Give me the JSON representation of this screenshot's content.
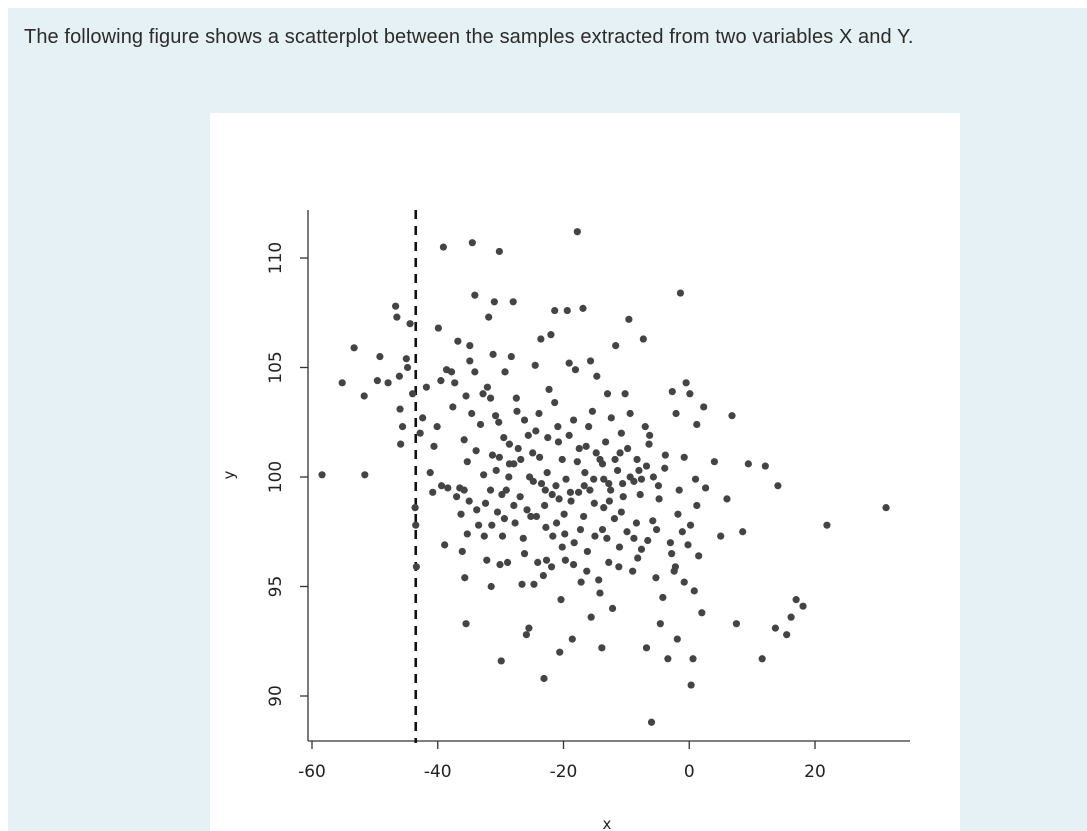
{
  "question": {
    "text": "The following figure shows a scatterplot between the samples extracted from two variables X and Y."
  },
  "colors": {
    "panel_background": "#e5f1f4",
    "point": "#444444",
    "reference_line": "#111111"
  },
  "chart_data": {
    "type": "scatter",
    "xlabel": "x",
    "ylabel": "y",
    "xlim": [
      -60,
      35
    ],
    "ylim": [
      88.0,
      112.0
    ],
    "x_ticks": [
      -60,
      -40,
      -20,
      0,
      20
    ],
    "y_ticks": [
      90,
      95,
      100,
      105,
      110
    ],
    "x_tick_labels": [
      "-60",
      "-40",
      "-20",
      "0",
      "20"
    ],
    "y_tick_labels": [
      "90",
      "95",
      "100",
      "105",
      "110"
    ],
    "reference_line": {
      "axis": "x",
      "value": -43.5,
      "style": "dashed"
    },
    "grid": false,
    "legend": "none",
    "series": [
      {
        "points": [
          [
            -58.4,
            100.1
          ],
          [
            -51.6,
            100.1
          ],
          [
            -55.2,
            104.3
          ],
          [
            -53.3,
            105.9
          ],
          [
            -51.7,
            103.7
          ],
          [
            -49.6,
            104.4
          ],
          [
            -49.2,
            105.5
          ],
          [
            -47.9,
            104.3
          ],
          [
            -46.7,
            107.8
          ],
          [
            -46.5,
            107.3
          ],
          [
            -46.1,
            104.6
          ],
          [
            -46.0,
            103.1
          ],
          [
            -45.6,
            102.3
          ],
          [
            -45.9,
            101.5
          ],
          [
            -45.0,
            105.4
          ],
          [
            -44.8,
            105.0
          ],
          [
            -44.4,
            107.0
          ],
          [
            -44.0,
            103.8
          ],
          [
            -43.6,
            98.6
          ],
          [
            -43.5,
            97.8
          ],
          [
            -43.4,
            95.9
          ],
          [
            -42.4,
            102.7
          ],
          [
            -41.8,
            104.1
          ],
          [
            -41.2,
            100.2
          ],
          [
            -40.8,
            99.3
          ],
          [
            -40.1,
            102.3
          ],
          [
            -39.9,
            106.8
          ],
          [
            -39.5,
            104.4
          ],
          [
            -39.4,
            99.6
          ],
          [
            -39.1,
            110.5
          ],
          [
            -38.9,
            96.9
          ],
          [
            -38.6,
            104.9
          ],
          [
            -38.4,
            99.5
          ],
          [
            -37.8,
            104.8
          ],
          [
            -37.6,
            103.2
          ],
          [
            -37.3,
            104.3
          ],
          [
            -36.8,
            106.2
          ],
          [
            -36.5,
            99.5
          ],
          [
            -36.3,
            98.3
          ],
          [
            -35.8,
            101.7
          ],
          [
            -36.1,
            96.6
          ],
          [
            -35.8,
            99.4
          ],
          [
            -35.7,
            95.4
          ],
          [
            -35.5,
            93.3
          ],
          [
            -35.5,
            103.7
          ],
          [
            -35.3,
            100.7
          ],
          [
            -35.3,
            97.4
          ],
          [
            -34.9,
            105.3
          ],
          [
            -34.9,
            106.0
          ],
          [
            -34.5,
            110.7
          ],
          [
            -34.1,
            108.3
          ],
          [
            -34.1,
            104.8
          ],
          [
            -33.8,
            98.5
          ],
          [
            -33.5,
            97.8
          ],
          [
            -33.2,
            102.4
          ],
          [
            -32.8,
            103.8
          ],
          [
            -32.4,
            98.8
          ],
          [
            -32.2,
            96.2
          ],
          [
            -32.1,
            104.1
          ],
          [
            -31.9,
            107.3
          ],
          [
            -31.6,
            99.4
          ],
          [
            -31.5,
            95.0
          ],
          [
            -31.4,
            97.8
          ],
          [
            -31.3,
            101.0
          ],
          [
            -31.2,
            105.6
          ],
          [
            -31.0,
            108.0
          ],
          [
            -30.7,
            100.3
          ],
          [
            -30.5,
            98.4
          ],
          [
            -30.3,
            102.5
          ],
          [
            -30.2,
            110.3
          ],
          [
            -30.1,
            96.0
          ],
          [
            -29.9,
            91.6
          ],
          [
            -29.7,
            97.3
          ],
          [
            -29.5,
            101.8
          ],
          [
            -29.3,
            104.8
          ],
          [
            -29.1,
            99.4
          ],
          [
            -28.9,
            96.1
          ],
          [
            -28.7,
            100.0
          ],
          [
            -28.3,
            105.5
          ],
          [
            -28.0,
            108.0
          ],
          [
            -27.9,
            98.7
          ],
          [
            -27.5,
            103.6
          ],
          [
            -27.2,
            101.3
          ],
          [
            -26.9,
            99.1
          ],
          [
            -26.6,
            95.1
          ],
          [
            -26.4,
            97.2
          ],
          [
            -26.2,
            102.6
          ],
          [
            -25.9,
            92.8
          ],
          [
            -25.5,
            93.1
          ],
          [
            -25.4,
            100.0
          ],
          [
            -25.2,
            98.2
          ],
          [
            -24.9,
            101.1
          ],
          [
            -24.7,
            95.1
          ],
          [
            -24.5,
            105.1
          ],
          [
            -24.1,
            96.1
          ],
          [
            -23.9,
            102.9
          ],
          [
            -23.6,
            106.3
          ],
          [
            -23.5,
            99.7
          ],
          [
            -23.1,
            90.8
          ],
          [
            -23.0,
            98.7
          ],
          [
            -22.7,
            96.2
          ],
          [
            -22.5,
            101.8
          ],
          [
            -22.3,
            104.0
          ],
          [
            -22.0,
            106.5
          ],
          [
            -21.9,
            95.9
          ],
          [
            -21.7,
            97.3
          ],
          [
            -21.4,
            107.6
          ],
          [
            -21.2,
            99.6
          ],
          [
            -20.9,
            102.3
          ],
          [
            -20.6,
            92.0
          ],
          [
            -20.4,
            94.4
          ],
          [
            -20.2,
            100.8
          ],
          [
            -19.9,
            98.3
          ],
          [
            -19.7,
            96.2
          ],
          [
            -19.4,
            107.6
          ],
          [
            -19.1,
            105.2
          ],
          [
            -18.9,
            99.3
          ],
          [
            -18.6,
            92.6
          ],
          [
            -18.4,
            96.0
          ],
          [
            -18.1,
            104.9
          ],
          [
            -17.8,
            111.2
          ],
          [
            -17.5,
            101.3
          ],
          [
            -17.3,
            97.6
          ],
          [
            -16.9,
            107.7
          ],
          [
            -16.7,
            99.6
          ],
          [
            -16.3,
            95.7
          ],
          [
            -16.0,
            102.3
          ],
          [
            -15.7,
            105.3
          ],
          [
            -15.6,
            93.6
          ],
          [
            -15.2,
            99.9
          ],
          [
            -15.0,
            97.3
          ],
          [
            -14.7,
            104.6
          ],
          [
            -14.4,
            95.3
          ],
          [
            -14.2,
            100.8
          ],
          [
            -13.9,
            92.2
          ],
          [
            -13.6,
            98.6
          ],
          [
            -13.3,
            101.6
          ],
          [
            -13.0,
            103.8
          ],
          [
            -12.8,
            96.1
          ],
          [
            -12.5,
            99.4
          ],
          [
            -12.2,
            94.0
          ],
          [
            -11.9,
            98.1
          ],
          [
            -11.7,
            106.0
          ],
          [
            -11.4,
            100.3
          ],
          [
            -11.1,
            96.8
          ],
          [
            -10.8,
            102.0
          ],
          [
            -10.5,
            99.1
          ],
          [
            -10.2,
            103.8
          ],
          [
            -9.9,
            97.5
          ],
          [
            -9.6,
            107.2
          ],
          [
            -9.4,
            100.0
          ],
          [
            -9.0,
            95.7
          ],
          [
            -8.8,
            99.8
          ],
          [
            -8.4,
            97.9
          ],
          [
            -8.0,
            100.3
          ],
          [
            -7.6,
            96.7
          ],
          [
            -7.3,
            106.3
          ],
          [
            -7.0,
            102.3
          ],
          [
            -6.8,
            92.2
          ],
          [
            -6.6,
            97.1
          ],
          [
            -6.3,
            101.9
          ],
          [
            -6.0,
            88.8
          ],
          [
            -5.7,
            100.0
          ],
          [
            -5.3,
            95.4
          ],
          [
            -4.9,
            99.6
          ],
          [
            -4.6,
            93.3
          ],
          [
            -4.2,
            94.5
          ],
          [
            -3.9,
            100.4
          ],
          [
            -3.4,
            91.7
          ],
          [
            -3.0,
            97.0
          ],
          [
            -2.7,
            103.9
          ],
          [
            -2.4,
            95.7
          ],
          [
            -2.1,
            102.9
          ],
          [
            -1.9,
            92.6
          ],
          [
            -1.6,
            99.4
          ],
          [
            -1.4,
            108.4
          ],
          [
            -1.1,
            97.5
          ],
          [
            -0.8,
            95.2
          ],
          [
            -0.5,
            104.3
          ],
          [
            -0.2,
            96.9
          ],
          [
            0.1,
            103.8
          ],
          [
            0.3,
            90.5
          ],
          [
            0.6,
            91.7
          ],
          [
            1.0,
            99.9
          ],
          [
            1.2,
            102.4
          ],
          [
            1.5,
            96.4
          ],
          [
            2.0,
            93.8
          ],
          [
            2.3,
            103.2
          ],
          [
            2.6,
            99.5
          ],
          [
            4.0,
            100.7
          ],
          [
            5.0,
            97.3
          ],
          [
            6.0,
            99.0
          ],
          [
            6.8,
            102.8
          ],
          [
            7.5,
            93.3
          ],
          [
            8.5,
            97.5
          ],
          [
            9.4,
            100.6
          ],
          [
            11.6,
            91.7
          ],
          [
            12.1,
            100.5
          ],
          [
            13.7,
            93.1
          ],
          [
            14.1,
            99.6
          ],
          [
            15.5,
            92.8
          ],
          [
            16.2,
            93.6
          ],
          [
            17.0,
            94.4
          ],
          [
            18.1,
            94.1
          ],
          [
            21.9,
            97.8
          ],
          [
            31.3,
            98.6
          ],
          [
            -42.8,
            102.0
          ],
          [
            -40.6,
            101.4
          ],
          [
            -37.0,
            99.1
          ],
          [
            -33.9,
            101.2
          ],
          [
            -32.7,
            100.1
          ],
          [
            -29.8,
            99.2
          ],
          [
            -28.6,
            101.5
          ],
          [
            -27.7,
            97.9
          ],
          [
            -26.8,
            100.8
          ],
          [
            -25.8,
            98.5
          ],
          [
            -24.8,
            99.8
          ],
          [
            -23.8,
            100.9
          ],
          [
            -22.8,
            97.7
          ],
          [
            -21.8,
            99.2
          ],
          [
            -20.8,
            101.6
          ],
          [
            -19.8,
            97.4
          ],
          [
            -18.8,
            98.9
          ],
          [
            -17.8,
            100.7
          ],
          [
            -16.8,
            98.2
          ],
          [
            -15.8,
            99.4
          ],
          [
            -14.8,
            101.1
          ],
          [
            -13.8,
            97.6
          ],
          [
            -12.8,
            99.7
          ],
          [
            -11.8,
            100.8
          ],
          [
            -10.8,
            98.4
          ],
          [
            -9.8,
            101.3
          ],
          [
            -8.8,
            97.2
          ],
          [
            -7.8,
            99.2
          ],
          [
            -6.8,
            100.5
          ],
          [
            -5.8,
            98.0
          ],
          [
            -4.8,
            99.0
          ],
          [
            -3.8,
            101.0
          ],
          [
            -2.8,
            96.5
          ],
          [
            -1.8,
            98.3
          ],
          [
            -0.8,
            100.9
          ],
          [
            0.2,
            97.8
          ],
          [
            1.2,
            98.7
          ],
          [
            -30.8,
            102.8
          ],
          [
            -27.4,
            103.0
          ],
          [
            -24.4,
            102.1
          ],
          [
            -21.4,
            103.4
          ],
          [
            -18.4,
            102.6
          ],
          [
            -15.4,
            103.0
          ],
          [
            -12.4,
            102.7
          ],
          [
            -9.4,
            102.9
          ],
          [
            -6.4,
            101.5
          ],
          [
            -26.2,
            96.5
          ],
          [
            -23.2,
            95.5
          ],
          [
            -20.2,
            96.8
          ],
          [
            -17.2,
            95.2
          ],
          [
            -14.2,
            94.7
          ],
          [
            -11.2,
            95.9
          ],
          [
            -8.2,
            96.3
          ],
          [
            -5.2,
            97.6
          ],
          [
            -2.2,
            95.9
          ],
          [
            0.8,
            94.8
          ],
          [
            -34.6,
            102.9
          ],
          [
            -31.6,
            103.6
          ],
          [
            -28.6,
            100.6
          ],
          [
            -25.6,
            101.9
          ],
          [
            -22.6,
            100.2
          ],
          [
            -19.6,
            99.9
          ],
          [
            -16.6,
            100.2
          ],
          [
            -13.6,
            99.9
          ],
          [
            -10.6,
            99.7
          ],
          [
            -7.6,
            99.9
          ],
          [
            -22.9,
            99.4
          ],
          [
            -20.7,
            99.0
          ],
          [
            -17.6,
            99.3
          ],
          [
            -15.1,
            98.8
          ],
          [
            -12.7,
            98.9
          ],
          [
            -24.3,
            98.2
          ],
          [
            -21.1,
            97.9
          ],
          [
            -18.3,
            97.0
          ],
          [
            -16.2,
            96.6
          ],
          [
            -13.1,
            97.2
          ],
          [
            -19.1,
            101.9
          ],
          [
            -16.4,
            101.4
          ],
          [
            -13.8,
            100.6
          ],
          [
            -11.0,
            101.1
          ],
          [
            -8.3,
            100.8
          ],
          [
            -27.9,
            100.6
          ],
          [
            -30.2,
            100.9
          ],
          [
            -32.6,
            97.3
          ],
          [
            -35.0,
            98.9
          ],
          [
            -29.4,
            98.1
          ]
        ]
      }
    ]
  }
}
